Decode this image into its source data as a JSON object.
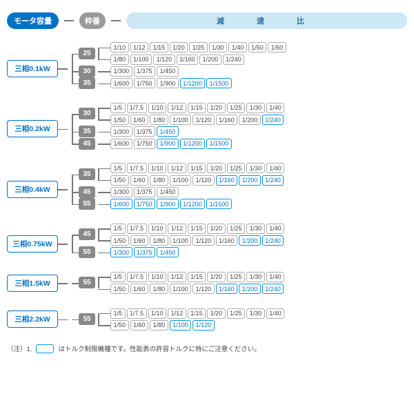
{
  "colors": {
    "brand_blue": "#0072c6",
    "highlight_border": "#0096e0",
    "grey_pill": "#999999",
    "light_blue": "#cce8f5",
    "connector": "#777777",
    "ratio_border": "#aaaaaa"
  },
  "header": {
    "motor_capacity": "モータ容量",
    "frame_no": "枠番",
    "reduction_ratio": "減　速　比"
  },
  "groups": [
    {
      "motor": "三相0.1kW",
      "frames": [
        {
          "no": "25",
          "lines": [
            [
              {
                "v": "1/10"
              },
              {
                "v": "1/12"
              },
              {
                "v": "1/15"
              },
              {
                "v": "1/20"
              },
              {
                "v": "1/25"
              },
              {
                "v": "1/30"
              },
              {
                "v": "1/40"
              },
              {
                "v": "1/50"
              },
              {
                "v": "1/60"
              }
            ],
            [
              {
                "v": "1/80"
              },
              {
                "v": "1/100"
              },
              {
                "v": "1/120"
              },
              {
                "v": "1/160"
              },
              {
                "v": "1/200"
              },
              {
                "v": "1/240"
              }
            ]
          ]
        },
        {
          "no": "30",
          "lines": [
            [
              {
                "v": "1/300"
              },
              {
                "v": "1/375"
              },
              {
                "v": "1/450"
              }
            ]
          ]
        },
        {
          "no": "35",
          "lines": [
            [
              {
                "v": "1/600"
              },
              {
                "v": "1/750"
              },
              {
                "v": "1/900"
              },
              {
                "v": "1/1200",
                "hl": true
              },
              {
                "v": "1/1500",
                "hl": true
              }
            ]
          ]
        }
      ]
    },
    {
      "motor": "三相0.2kW",
      "frames": [
        {
          "no": "30",
          "lines": [
            [
              {
                "v": "1/5"
              },
              {
                "v": "1/7.5"
              },
              {
                "v": "1/10"
              },
              {
                "v": "1/12"
              },
              {
                "v": "1/15"
              },
              {
                "v": "1/20"
              },
              {
                "v": "1/25"
              },
              {
                "v": "1/30"
              },
              {
                "v": "1/40"
              }
            ],
            [
              {
                "v": "1/50"
              },
              {
                "v": "1/60"
              },
              {
                "v": "1/80"
              },
              {
                "v": "1/100"
              },
              {
                "v": "1/120"
              },
              {
                "v": "1/160"
              },
              {
                "v": "1/200"
              },
              {
                "v": "1/240",
                "hl": true
              }
            ]
          ]
        },
        {
          "no": "35",
          "lines": [
            [
              {
                "v": "1/300"
              },
              {
                "v": "1/375"
              },
              {
                "v": "1/450",
                "hl": true
              }
            ]
          ]
        },
        {
          "no": "45",
          "lines": [
            [
              {
                "v": "1/600"
              },
              {
                "v": "1/750"
              },
              {
                "v": "1/900",
                "hl": true
              },
              {
                "v": "1/1200",
                "hl": true
              },
              {
                "v": "1/1500",
                "hl": true
              }
            ]
          ]
        }
      ]
    },
    {
      "motor": "三相0.4kW",
      "frames": [
        {
          "no": "35",
          "lines": [
            [
              {
                "v": "1/5"
              },
              {
                "v": "1/7.5"
              },
              {
                "v": "1/10"
              },
              {
                "v": "1/12"
              },
              {
                "v": "1/15"
              },
              {
                "v": "1/20"
              },
              {
                "v": "1/25"
              },
              {
                "v": "1/30"
              },
              {
                "v": "1/40"
              }
            ],
            [
              {
                "v": "1/50"
              },
              {
                "v": "1/60"
              },
              {
                "v": "1/80"
              },
              {
                "v": "1/100"
              },
              {
                "v": "1/120"
              },
              {
                "v": "1/160",
                "hl": true
              },
              {
                "v": "1/200",
                "hl": true
              },
              {
                "v": "1/240",
                "hl": true
              }
            ]
          ]
        },
        {
          "no": "45",
          "lines": [
            [
              {
                "v": "1/300"
              },
              {
                "v": "1/375"
              },
              {
                "v": "1/450"
              }
            ]
          ]
        },
        {
          "no": "55",
          "lines": [
            [
              {
                "v": "1/600",
                "hl": true
              },
              {
                "v": "1/750",
                "hl": true
              },
              {
                "v": "1/900",
                "hl": true
              },
              {
                "v": "1/1200",
                "hl": true
              },
              {
                "v": "1/1500",
                "hl": true
              }
            ]
          ]
        }
      ]
    },
    {
      "motor": "三相0.75kW",
      "frames": [
        {
          "no": "45",
          "lines": [
            [
              {
                "v": "1/5"
              },
              {
                "v": "1/7.5"
              },
              {
                "v": "1/10"
              },
              {
                "v": "1/12"
              },
              {
                "v": "1/15"
              },
              {
                "v": "1/20"
              },
              {
                "v": "1/25"
              },
              {
                "v": "1/30"
              },
              {
                "v": "1/40"
              }
            ],
            [
              {
                "v": "1/50"
              },
              {
                "v": "1/60"
              },
              {
                "v": "1/80"
              },
              {
                "v": "1/100"
              },
              {
                "v": "1/120"
              },
              {
                "v": "1/160"
              },
              {
                "v": "1/200",
                "hl": true
              },
              {
                "v": "1/240",
                "hl": true
              }
            ]
          ]
        },
        {
          "no": "55",
          "lines": [
            [
              {
                "v": "1/300",
                "hl": true
              },
              {
                "v": "1/375",
                "hl": true
              },
              {
                "v": "1/450",
                "hl": true
              }
            ]
          ]
        }
      ]
    },
    {
      "motor": "三相1.5kW",
      "frames": [
        {
          "no": "55",
          "lines": [
            [
              {
                "v": "1/5"
              },
              {
                "v": "1/7.5"
              },
              {
                "v": "1/10"
              },
              {
                "v": "1/12"
              },
              {
                "v": "1/15"
              },
              {
                "v": "1/20"
              },
              {
                "v": "1/25"
              },
              {
                "v": "1/30"
              },
              {
                "v": "1/40"
              }
            ],
            [
              {
                "v": "1/50"
              },
              {
                "v": "1/60"
              },
              {
                "v": "1/80"
              },
              {
                "v": "1/100"
              },
              {
                "v": "1/120"
              },
              {
                "v": "1/160",
                "hl": true
              },
              {
                "v": "1/200",
                "hl": true
              },
              {
                "v": "1/240",
                "hl": true
              }
            ]
          ]
        }
      ]
    },
    {
      "motor": "三相2.2kW",
      "frames": [
        {
          "no": "55",
          "lines": [
            [
              {
                "v": "1/5"
              },
              {
                "v": "1/7.5"
              },
              {
                "v": "1/10"
              },
              {
                "v": "1/12"
              },
              {
                "v": "1/15"
              },
              {
                "v": "1/20"
              },
              {
                "v": "1/25"
              },
              {
                "v": "1/30"
              },
              {
                "v": "1/40"
              }
            ],
            [
              {
                "v": "1/50"
              },
              {
                "v": "1/60"
              },
              {
                "v": "1/80"
              },
              {
                "v": "1/100",
                "hl": true
              },
              {
                "v": "1/120",
                "hl": true
              }
            ]
          ]
        }
      ]
    }
  ],
  "footnote": {
    "prefix": "（注）1.",
    "text": "はトルク制限機種です。性能表の許容トルクに特にご注意ください。"
  }
}
